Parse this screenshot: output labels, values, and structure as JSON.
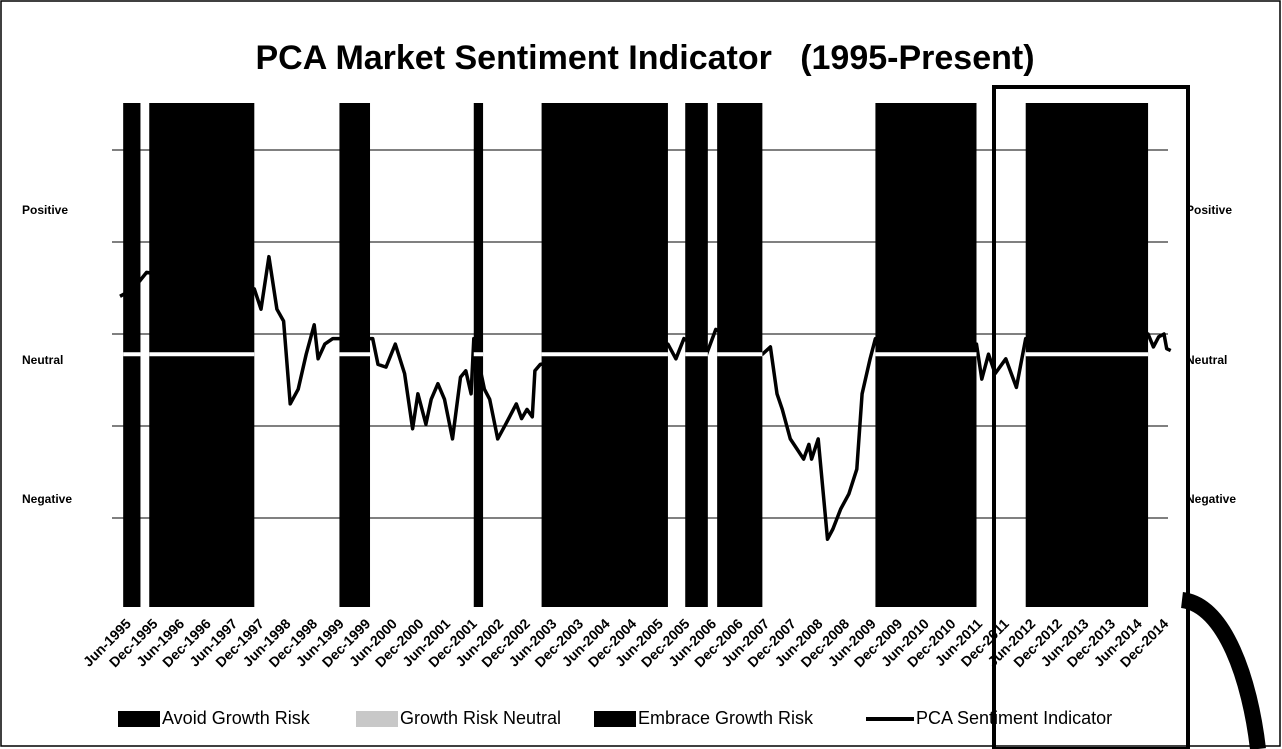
{
  "chart_data": {
    "type": "line",
    "title": "PCA Market Sentiment Indicator   (1995-Present)",
    "categories": [
      "Jun-1995",
      "Dec-1995",
      "Jun-1996",
      "Dec-1996",
      "Jun-1997",
      "Dec-1997",
      "Jun-1998",
      "Dec-1998",
      "Jun-1999",
      "Dec-1999",
      "Jun-2000",
      "Dec-2000",
      "Jun-2001",
      "Dec-2001",
      "Jun-2002",
      "Dec-2002",
      "Jun-2003",
      "Dec-2003",
      "Jun-2004",
      "Dec-2004",
      "Jun-2005",
      "Dec-2005",
      "Jun-2006",
      "Dec-2006",
      "Jun-2007",
      "Dec-2007",
      "Jun-2008",
      "Dec-2008",
      "Jun-2009",
      "Dec-2009",
      "Jun-2010",
      "Dec-2010",
      "Jun-2011",
      "Dec-2011",
      "Jun-2012",
      "Dec-2012",
      "Jun-2013",
      "Dec-2013",
      "Jun-2014",
      "Dec-2014"
    ],
    "xlim": [
      -0.5,
      39.5
    ],
    "ylim": [
      -3,
      3
    ],
    "grid_lines": [
      -2,
      -1,
      0,
      1,
      2
    ],
    "yticks": [
      {
        "value": 1.34,
        "label": "Positive"
      },
      {
        "value": -0.29,
        "label": "Neutral"
      },
      {
        "value": -1.8,
        "label": "Negative"
      }
    ],
    "bands": [
      [
        -0.08,
        0.57
      ],
      [
        0.9,
        4.85
      ],
      [
        8.05,
        9.2
      ],
      [
        13.1,
        13.45
      ],
      [
        15.65,
        20.4
      ],
      [
        21.05,
        21.9
      ],
      [
        22.25,
        23.95
      ],
      [
        28.2,
        32.0
      ],
      [
        33.85,
        38.45
      ]
    ],
    "band_color": "#000000",
    "neutral_line": -0.22,
    "legend": [
      {
        "name": "Avoid Growth Risk",
        "color": "#000000"
      },
      {
        "name": "Growth Risk Neutral",
        "color": "#c8c8c8"
      },
      {
        "name": "Embrace Growth Risk",
        "color": "#000000"
      }
    ],
    "series": [
      {
        "name": "PCA Sentiment Indicator",
        "color": "#000000",
        "x": [
          -0.2,
          0.3,
          0.8,
          4.85,
          5.1,
          5.4,
          5.7,
          5.95,
          6.2,
          6.5,
          6.8,
          7.1,
          7.25,
          7.5,
          7.8,
          9.3,
          9.5,
          9.8,
          10.15,
          10.5,
          10.8,
          11.0,
          11.3,
          11.5,
          11.75,
          12.0,
          12.3,
          12.6,
          12.8,
          13.0,
          13.1,
          13.5,
          13.7,
          14.0,
          14.3,
          14.7,
          14.9,
          15.1,
          15.3,
          15.4,
          15.6,
          20.4,
          20.7,
          21.0,
          21.85,
          22.2,
          23.95,
          24.25,
          24.5,
          24.7,
          25.0,
          25.25,
          25.5,
          25.7,
          25.8,
          26.05,
          26.4,
          26.6,
          26.9,
          27.2,
          27.5,
          27.7,
          28.0,
          28.2,
          32.0,
          32.2,
          32.45,
          32.7,
          33.1,
          33.5,
          33.85,
          38.45,
          38.65,
          38.85,
          39.05,
          39.15,
          39.3
        ],
        "values": [
          0.41,
          0.49,
          0.67,
          0.49,
          0.27,
          0.84,
          0.27,
          0.14,
          -0.76,
          -0.6,
          -0.22,
          0.1,
          -0.27,
          -0.11,
          -0.05,
          -0.05,
          -0.33,
          -0.36,
          -0.11,
          -0.43,
          -1.03,
          -0.65,
          -0.98,
          -0.71,
          -0.54,
          -0.71,
          -1.14,
          -0.47,
          -0.4,
          -0.65,
          -0.05,
          -0.6,
          -0.71,
          -1.14,
          -0.98,
          -0.76,
          -0.92,
          -0.82,
          -0.9,
          -0.4,
          -0.33,
          -0.11,
          -0.27,
          -0.05,
          -0.22,
          0.05,
          -0.22,
          -0.14,
          -0.65,
          -0.82,
          -1.14,
          -1.25,
          -1.36,
          -1.2,
          -1.36,
          -1.14,
          -2.23,
          -2.12,
          -1.9,
          -1.74,
          -1.47,
          -0.65,
          -0.27,
          -0.05,
          -0.11,
          -0.49,
          -0.22,
          -0.43,
          -0.27,
          -0.58,
          -0.05,
          0,
          -0.14,
          -0.03,
          0,
          -0.16,
          -0.18
        ]
      }
    ]
  }
}
